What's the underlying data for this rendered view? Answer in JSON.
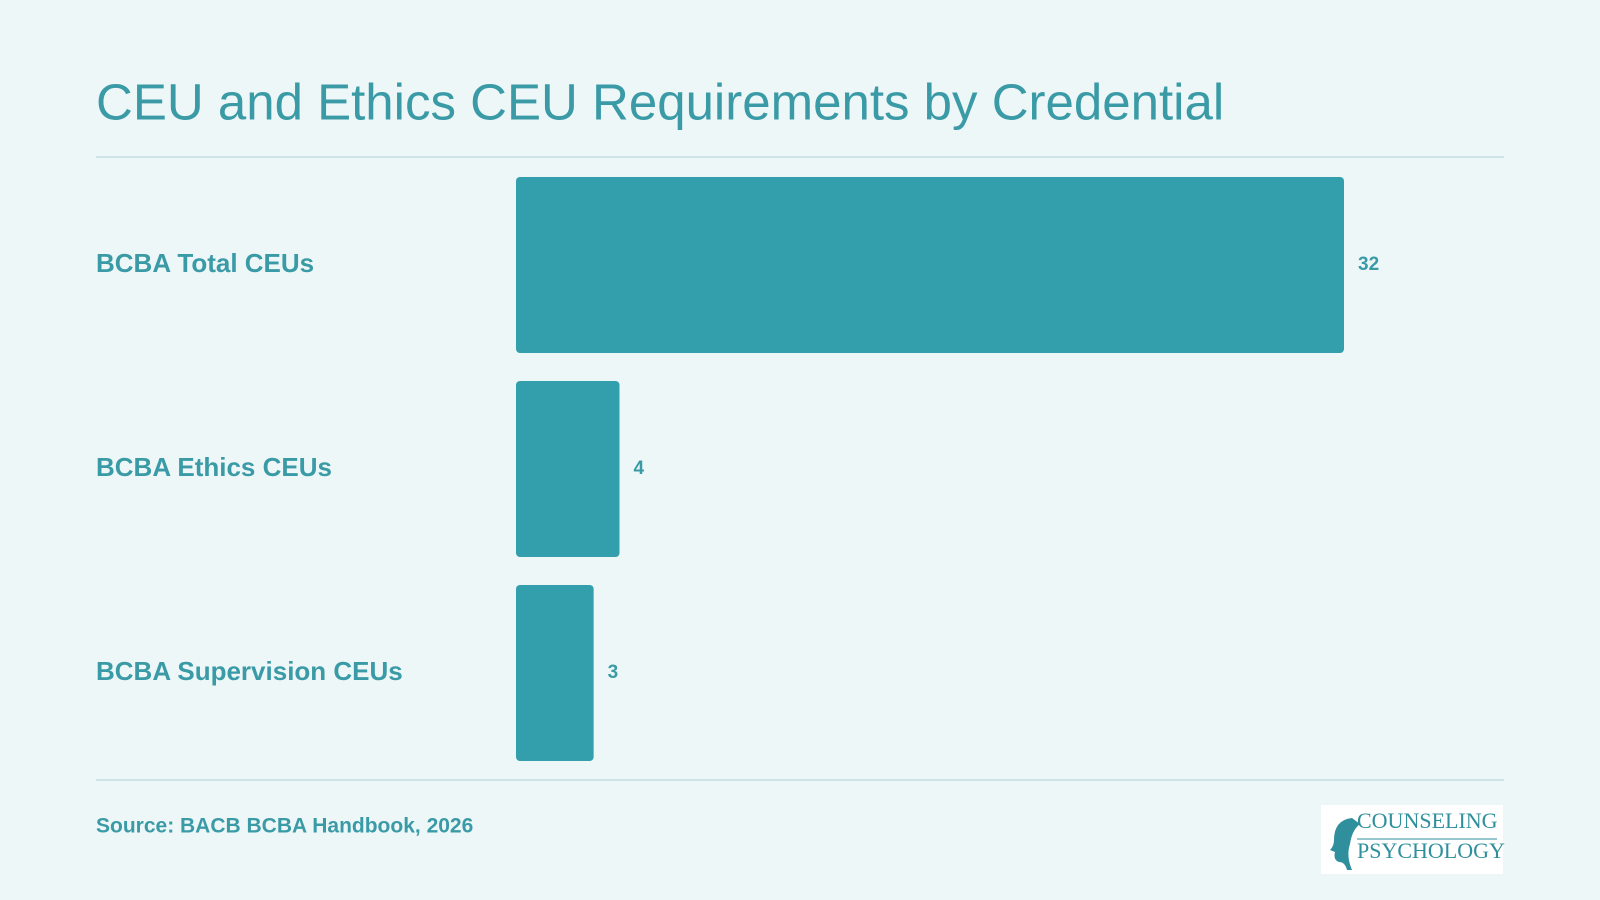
{
  "chart_data": {
    "type": "bar",
    "orientation": "horizontal",
    "title": "CEU and Ethics CEU Requirements by Credential",
    "categories": [
      "BCBA Total CEUs",
      "BCBA Ethics CEUs",
      "BCBA Supervision CEUs"
    ],
    "values": [
      32,
      4,
      3
    ],
    "color": "#339fac",
    "source": "Source: BACB BCBA Handbook, 2026",
    "logo": {
      "line1": "COUNSELING",
      "line2": "PSYCHOLOGY"
    }
  }
}
